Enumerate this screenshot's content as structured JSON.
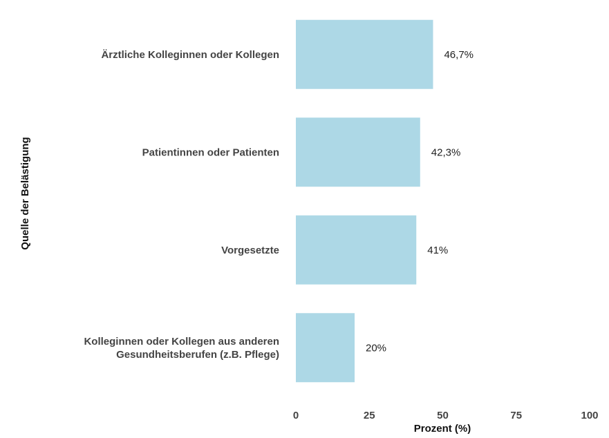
{
  "chart_data": {
    "type": "bar",
    "orientation": "horizontal",
    "categories": [
      [
        "Ärztliche Kolleginnen oder Kollegen"
      ],
      [
        "Patientinnen oder Patienten"
      ],
      [
        "Vorgesetzte"
      ],
      [
        "Kolleginnen oder Kollegen aus anderen",
        "Gesundheitsberufen (z.B. Pflege)"
      ]
    ],
    "values": [
      46.7,
      42.3,
      41,
      20
    ],
    "value_labels": [
      "46,7%",
      "42,3%",
      "41%",
      "20%"
    ],
    "xlabel": "Prozent (%)",
    "ylabel": "Quelle der Belästigung",
    "xlim": [
      0,
      100
    ],
    "xticks": [
      0,
      25,
      50,
      75,
      100
    ],
    "grid": false,
    "bar_color": "#add8e6"
  }
}
